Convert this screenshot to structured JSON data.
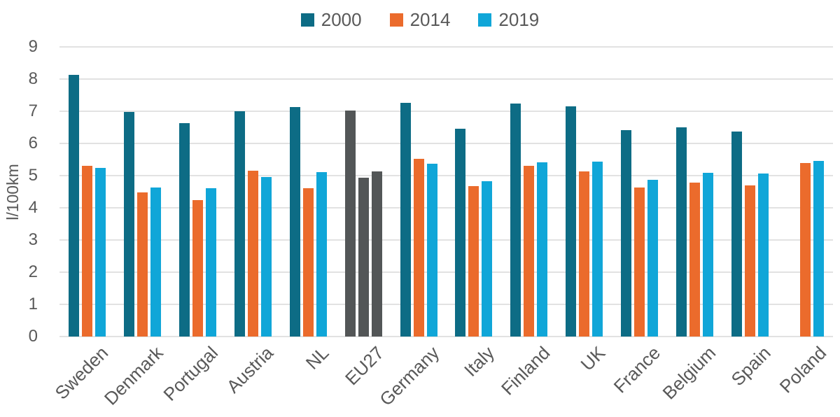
{
  "chart_data": {
    "type": "bar",
    "title": "",
    "ylabel": "l/100km",
    "ylim": [
      0,
      9
    ],
    "yticks": [
      0,
      1,
      2,
      3,
      4,
      5,
      6,
      7,
      8,
      9
    ],
    "grid": true,
    "legend_position": "top-center",
    "categories": [
      "Sweden",
      "Denmark",
      "Portugal",
      "Austria",
      "NL",
      "EU27",
      "Germany",
      "Italy",
      "Finland",
      "UK",
      "France",
      "Belgium",
      "Spain",
      "Poland"
    ],
    "series": [
      {
        "name": "2000",
        "color": "#0d6c85",
        "values": [
          8.13,
          6.97,
          6.63,
          7.0,
          7.12,
          7.02,
          7.27,
          6.46,
          7.25,
          7.15,
          6.41,
          6.51,
          6.36,
          null
        ]
      },
      {
        "name": "2014",
        "color": "#eb6b2c",
        "values": [
          5.3,
          4.47,
          4.23,
          5.16,
          4.6,
          4.93,
          5.53,
          4.68,
          5.3,
          5.13,
          4.62,
          4.78,
          4.7,
          5.4
        ]
      },
      {
        "name": "2019",
        "color": "#10a6d8",
        "values": [
          5.25,
          4.63,
          4.61,
          4.96,
          5.1,
          5.14,
          5.38,
          4.82,
          5.42,
          5.43,
          4.87,
          5.08,
          5.06,
          5.45
        ]
      }
    ],
    "highlight_category": "EU27",
    "highlight_color": "#535657"
  },
  "styles": {
    "text_color": "#595959",
    "grid_color": "#e2e2e2",
    "background": "#ffffff"
  }
}
